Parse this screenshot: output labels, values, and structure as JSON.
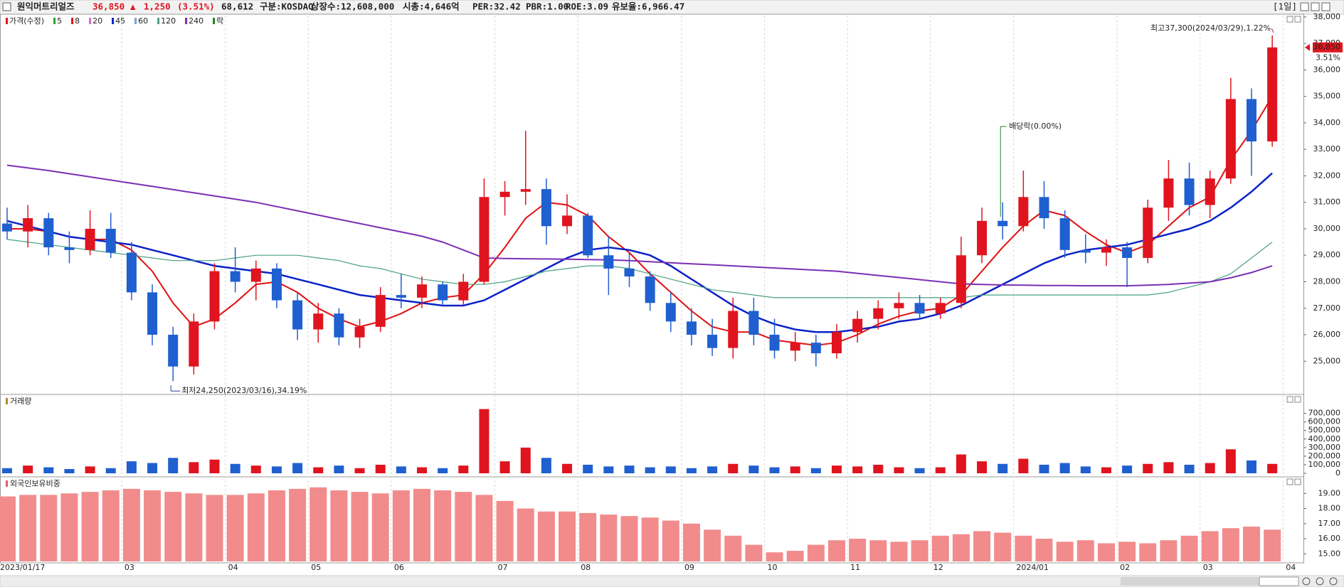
{
  "header": {
    "name": "원익머트리얼즈",
    "price": "36,850",
    "arrow": "▲",
    "change": "1,250",
    "change_pct": "(3.51%)",
    "volume": "68,612",
    "market": "구분:KOSDAQ",
    "shares": "상장수:12,608,000",
    "cap": "시총:4,646억",
    "per": "PER:32.42",
    "pbr": "PBR:1.00",
    "roe": "ROE:3.09",
    "reserve": "유보율:6,966.47",
    "period": "[1일]"
  },
  "chart_data": [
    {
      "type": "candlestick",
      "price_label": "가격(수정)",
      "price_color": "#e0141e",
      "ex_div_label": "락",
      "ex_div_color": "#208020",
      "up_color": "#e0141e",
      "down_color": "#1f5fd0",
      "categories": [
        "2023/01/17",
        null,
        null,
        null,
        null,
        null,
        "03",
        null,
        null,
        null,
        null,
        "04",
        null,
        null,
        null,
        "05",
        null,
        null,
        null,
        "06",
        null,
        null,
        null,
        null,
        "07",
        null,
        null,
        null,
        "08",
        null,
        null,
        null,
        null,
        "09",
        null,
        null,
        null,
        "10",
        null,
        null,
        null,
        "11",
        null,
        null,
        null,
        "12",
        null,
        null,
        null,
        "2024/01",
        null,
        null,
        null,
        null,
        "02",
        null,
        null,
        null,
        "03",
        null,
        null,
        null,
        "04"
      ],
      "open": [
        30200,
        29900,
        30400,
        29300,
        29200,
        30000,
        29100,
        27600,
        26000,
        24800,
        26500,
        28400,
        28000,
        28500,
        27300,
        26200,
        26800,
        25900,
        26300,
        27500,
        27400,
        27900,
        27300,
        28000,
        31200,
        31400,
        31500,
        30100,
        30500,
        29000,
        28500,
        28200,
        27200,
        26500,
        26000,
        25500,
        26900,
        26000,
        25400,
        25700,
        25300,
        26100,
        26600,
        27000,
        27200,
        26800,
        27200,
        29000,
        30300,
        30100,
        31200,
        30400,
        29200,
        29100,
        29300,
        28900,
        30800,
        31900,
        30900,
        31900,
        34900,
        33300,
        null
      ],
      "high": [
        30800,
        30900,
        30600,
        29900,
        30700,
        30600,
        29500,
        27900,
        26300,
        26800,
        28700,
        29300,
        28800,
        28700,
        27600,
        27200,
        27000,
        26600,
        27800,
        28300,
        28200,
        28000,
        28300,
        31900,
        31800,
        33700,
        31900,
        31300,
        30600,
        29700,
        29100,
        28400,
        27600,
        27000,
        26600,
        27400,
        27400,
        26600,
        26100,
        26000,
        26400,
        26900,
        27300,
        27600,
        27500,
        27400,
        29700,
        30800,
        31000,
        32200,
        31800,
        30700,
        29800,
        29600,
        29500,
        31100,
        32600,
        32500,
        32200,
        35700,
        35300,
        37300,
        null
      ],
      "low": [
        29600,
        29300,
        29000,
        28700,
        29000,
        28900,
        27300,
        25600,
        24250,
        24500,
        26200,
        27600,
        27300,
        27000,
        25800,
        25700,
        25600,
        25500,
        26100,
        27000,
        27000,
        27100,
        27100,
        27900,
        30500,
        30900,
        29400,
        29800,
        28900,
        27500,
        27800,
        26900,
        26100,
        25600,
        25200,
        25100,
        25600,
        25100,
        25000,
        24800,
        25100,
        25700,
        26200,
        26600,
        26600,
        26600,
        27000,
        28700,
        29600,
        29900,
        30000,
        28900,
        28700,
        28600,
        27800,
        28700,
        30300,
        30500,
        30400,
        31700,
        32000,
        33100,
        null
      ],
      "close": [
        29900,
        30400,
        29300,
        29200,
        30000,
        29100,
        27600,
        26000,
        24800,
        26500,
        28400,
        28000,
        28500,
        27300,
        26200,
        26800,
        25900,
        26300,
        27500,
        27400,
        27900,
        27300,
        28000,
        31200,
        31400,
        31500,
        30100,
        30500,
        29000,
        28500,
        28200,
        27200,
        26500,
        26000,
        25500,
        26900,
        26000,
        25400,
        25700,
        25300,
        26100,
        26600,
        27000,
        27200,
        26800,
        27200,
        29000,
        30300,
        30100,
        31200,
        30400,
        29200,
        29100,
        29300,
        28900,
        30800,
        31900,
        30900,
        31900,
        34900,
        33300,
        36850,
        null
      ],
      "moving_averages": [
        {
          "name": "5",
          "color": "#2ca02c"
        },
        {
          "name": "8",
          "color": "#e01010",
          "values": [
            30000,
            30000,
            29900,
            29700,
            29600,
            29600,
            29200,
            28400,
            27200,
            26300,
            26600,
            27200,
            27900,
            28000,
            27600,
            27000,
            26600,
            26300,
            26500,
            26800,
            27200,
            27400,
            27500,
            28300,
            29300,
            30400,
            31000,
            30900,
            30500,
            29700,
            29100,
            28300,
            27600,
            26900,
            26300,
            26100,
            26100,
            25800,
            25700,
            25600,
            25700,
            26000,
            26400,
            26700,
            26900,
            27000,
            27500,
            28400,
            29300,
            30100,
            30700,
            30500,
            29900,
            29400,
            29100,
            29400,
            30100,
            30800,
            31200,
            32600,
            33700,
            35000,
            null
          ]
        },
        {
          "name": "20",
          "color": "#d070c0"
        },
        {
          "name": "45",
          "color": "#0a22c8",
          "values": [
            30300,
            30100,
            29900,
            29700,
            29600,
            29500,
            29400,
            29200,
            29000,
            28800,
            28600,
            28500,
            28400,
            28300,
            28100,
            27900,
            27700,
            27500,
            27400,
            27300,
            27200,
            27100,
            27100,
            27300,
            27700,
            28100,
            28500,
            28900,
            29200,
            29300,
            29200,
            29000,
            28600,
            28100,
            27600,
            27100,
            26700,
            26400,
            26200,
            26100,
            26100,
            26200,
            26300,
            26500,
            26600,
            26800,
            27100,
            27500,
            27900,
            28300,
            28700,
            29000,
            29200,
            29300,
            29400,
            29600,
            29800,
            30000,
            30300,
            30800,
            31400,
            32100,
            null
          ]
        },
        {
          "name": "60",
          "color": "#7aa0d8"
        },
        {
          "name": "120",
          "color": "#48a080",
          "values": [
            29600,
            29500,
            29400,
            29300,
            29200,
            29100,
            29000,
            28900,
            28800,
            28800,
            28800,
            28900,
            29000,
            29000,
            29000,
            28900,
            28800,
            28600,
            28500,
            28300,
            28100,
            28000,
            27900,
            27900,
            28000,
            28200,
            28400,
            28500,
            28600,
            28600,
            28500,
            28300,
            28100,
            27900,
            27700,
            27600,
            27500,
            27400,
            27400,
            27400,
            27400,
            27400,
            27400,
            27400,
            27400,
            27400,
            27400,
            27500,
            27500,
            27500,
            27500,
            27500,
            27500,
            27500,
            27500,
            27500,
            27600,
            27800,
            28000,
            28300,
            28900,
            29500,
            null
          ]
        },
        {
          "name": "240",
          "color": "#7b2fb5",
          "values": [
            32400,
            32300,
            32200,
            32080,
            31960,
            31840,
            31720,
            31600,
            31480,
            31360,
            31240,
            31120,
            31000,
            30840,
            30680,
            30520,
            30360,
            30200,
            30040,
            29880,
            29720,
            29500,
            29200,
            28900,
            28880,
            28870,
            28860,
            28850,
            28840,
            28830,
            28800,
            28760,
            28720,
            28680,
            28640,
            28600,
            28560,
            28520,
            28480,
            28440,
            28400,
            28320,
            28240,
            28160,
            28080,
            28000,
            27920,
            27900,
            27880,
            27870,
            27860,
            27860,
            27850,
            27850,
            27850,
            27870,
            27900,
            27950,
            28000,
            28150,
            28350,
            28600,
            null
          ]
        }
      ],
      "annotations": {
        "high": "최고37,300(2024/03/29),1.22%",
        "low": "최저24,250(2023/03/16),34.19%",
        "ex_dividend": "배당락(0.00%)"
      },
      "last_price_label": "36,850",
      "last_change_label": "3.51%",
      "ylim": [
        23800,
        38050
      ],
      "yticks": [
        {
          "value": 25000,
          "label": "25,000"
        },
        {
          "value": 26000,
          "label": "26,000"
        },
        {
          "value": 27000,
          "label": "27,000"
        },
        {
          "value": 28000,
          "label": "28,000"
        },
        {
          "value": 29000,
          "label": "29,000"
        },
        {
          "value": 30000,
          "label": "30,000"
        },
        {
          "value": 31000,
          "label": "31,000"
        },
        {
          "value": 32000,
          "label": "32,000"
        },
        {
          "value": 33000,
          "label": "33,000"
        },
        {
          "value": 34000,
          "label": "34,000"
        },
        {
          "value": 35000,
          "label": "35,000"
        },
        {
          "value": 36000,
          "label": "36,000"
        },
        {
          "value": 37000,
          "label": "37,000"
        },
        {
          "value": 38000,
          "label": "38,000"
        }
      ]
    },
    {
      "type": "bar",
      "title": "거래량",
      "title_color": "#b08a20",
      "color_by": "candle",
      "values": [
        60000,
        90000,
        70000,
        50000,
        80000,
        60000,
        140000,
        120000,
        180000,
        130000,
        160000,
        110000,
        90000,
        80000,
        120000,
        70000,
        90000,
        60000,
        100000,
        80000,
        70000,
        60000,
        90000,
        750000,
        140000,
        300000,
        180000,
        110000,
        100000,
        80000,
        90000,
        70000,
        80000,
        60000,
        80000,
        110000,
        90000,
        70000,
        80000,
        60000,
        90000,
        80000,
        100000,
        70000,
        60000,
        70000,
        220000,
        140000,
        110000,
        170000,
        100000,
        120000,
        80000,
        70000,
        90000,
        110000,
        130000,
        100000,
        120000,
        280000,
        150000,
        110000,
        null
      ],
      "ylim": [
        0,
        780000
      ],
      "yticks": [
        0,
        {
          "value": 100000,
          "label": "100,000"
        },
        {
          "value": 200000,
          "label": "200,000"
        },
        {
          "value": 300000,
          "label": "300,000"
        },
        {
          "value": 400000,
          "label": "400,000"
        },
        {
          "value": 500000,
          "label": "500,000"
        },
        {
          "value": 600000,
          "label": "600,000"
        },
        {
          "value": 700000,
          "label": "700,000"
        }
      ]
    },
    {
      "type": "bar",
      "title": "외국인보유비중",
      "title_color": "#e06060",
      "color": "#f28b8b",
      "values": [
        18.8,
        18.9,
        18.9,
        19.0,
        19.1,
        19.2,
        19.3,
        19.2,
        19.1,
        19.0,
        18.9,
        18.9,
        19.0,
        19.2,
        19.3,
        19.4,
        19.2,
        19.1,
        19.0,
        19.2,
        19.3,
        19.2,
        19.1,
        18.9,
        18.5,
        18.0,
        17.8,
        17.8,
        17.7,
        17.6,
        17.5,
        17.4,
        17.2,
        17.0,
        16.6,
        16.2,
        15.6,
        15.1,
        15.2,
        15.6,
        15.9,
        16.0,
        15.9,
        15.8,
        15.9,
        16.2,
        16.3,
        16.5,
        16.4,
        16.2,
        16.0,
        15.8,
        15.9,
        15.7,
        15.8,
        15.7,
        15.9,
        16.2,
        16.5,
        16.7,
        16.8,
        16.6,
        null
      ],
      "ylim": [
        14.5,
        20
      ],
      "yticks": [
        {
          "value": 15,
          "label": "15.00"
        },
        {
          "value": 16,
          "label": "16.00"
        },
        {
          "value": 17,
          "label": "17.00"
        },
        {
          "value": 18,
          "label": "18.00"
        },
        {
          "value": 19,
          "label": "19.00"
        }
      ]
    }
  ]
}
